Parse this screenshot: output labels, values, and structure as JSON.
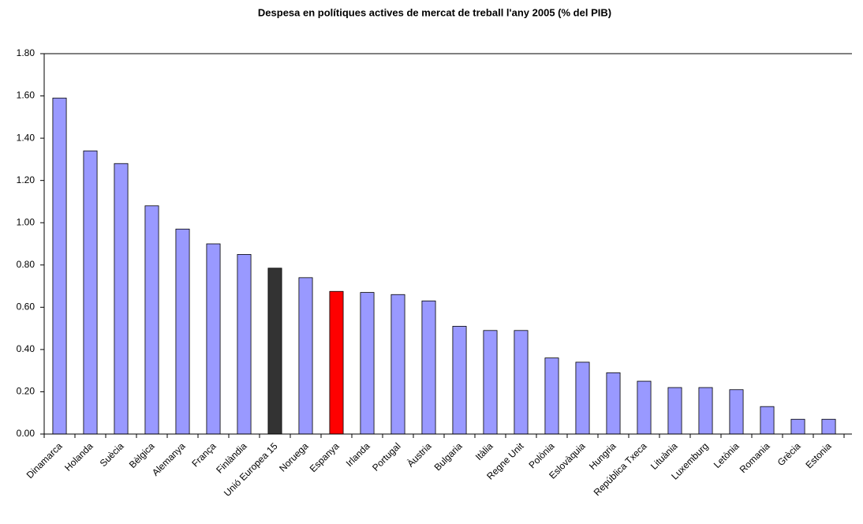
{
  "chart_data": {
    "type": "bar",
    "title": "Despesa en polítiques actives de mercat de treball l'any 2005 (% del PIB)",
    "categories": [
      "Dinamarca",
      "Holanda",
      "Suècia",
      "Bèlgica",
      "Alemanya",
      "França",
      "Finlàndia",
      "Unió Europea 15",
      "Noruega",
      "Espanya",
      "Irlanda",
      "Portugal",
      "Àustria",
      "Bulgaria",
      "Itàlia",
      "Regne Unit",
      "Polònia",
      "Eslovàquia",
      "Hungria",
      "República Txeca",
      "Lituània",
      "Luxemburg",
      "Letònia",
      "Romania",
      "Grècia",
      "Estonia"
    ],
    "values": [
      1.59,
      1.34,
      1.28,
      1.08,
      0.97,
      0.9,
      0.85,
      0.785,
      0.74,
      0.675,
      0.67,
      0.66,
      0.63,
      0.51,
      0.49,
      0.49,
      0.36,
      0.34,
      0.29,
      0.25,
      0.22,
      0.22,
      0.21,
      0.13,
      0.07,
      0.07
    ],
    "colors": [
      "#9999ff",
      "#9999ff",
      "#9999ff",
      "#9999ff",
      "#9999ff",
      "#9999ff",
      "#9999ff",
      "#333333",
      "#9999ff",
      "#ff0000",
      "#9999ff",
      "#9999ff",
      "#9999ff",
      "#9999ff",
      "#9999ff",
      "#9999ff",
      "#9999ff",
      "#9999ff",
      "#9999ff",
      "#9999ff",
      "#9999ff",
      "#9999ff",
      "#9999ff",
      "#9999ff",
      "#9999ff",
      "#9999ff"
    ],
    "ylim": [
      0,
      1.8
    ],
    "yticks": [
      {
        "value": 0,
        "label": "0.00"
      },
      {
        "value": 0.2,
        "label": "0.20"
      },
      {
        "value": 0.4,
        "label": "0.40"
      },
      {
        "value": 0.6,
        "label": "0.60"
      },
      {
        "value": 0.8,
        "label": "0.80"
      },
      {
        "value": 1.0,
        "label": "1.00"
      },
      {
        "value": 1.2,
        "label": "1.20"
      },
      {
        "value": 1.4,
        "label": "1.40"
      },
      {
        "value": 1.6,
        "label": "1.60"
      },
      {
        "value": 1.8,
        "label": "1.80"
      }
    ],
    "grid": false
  }
}
